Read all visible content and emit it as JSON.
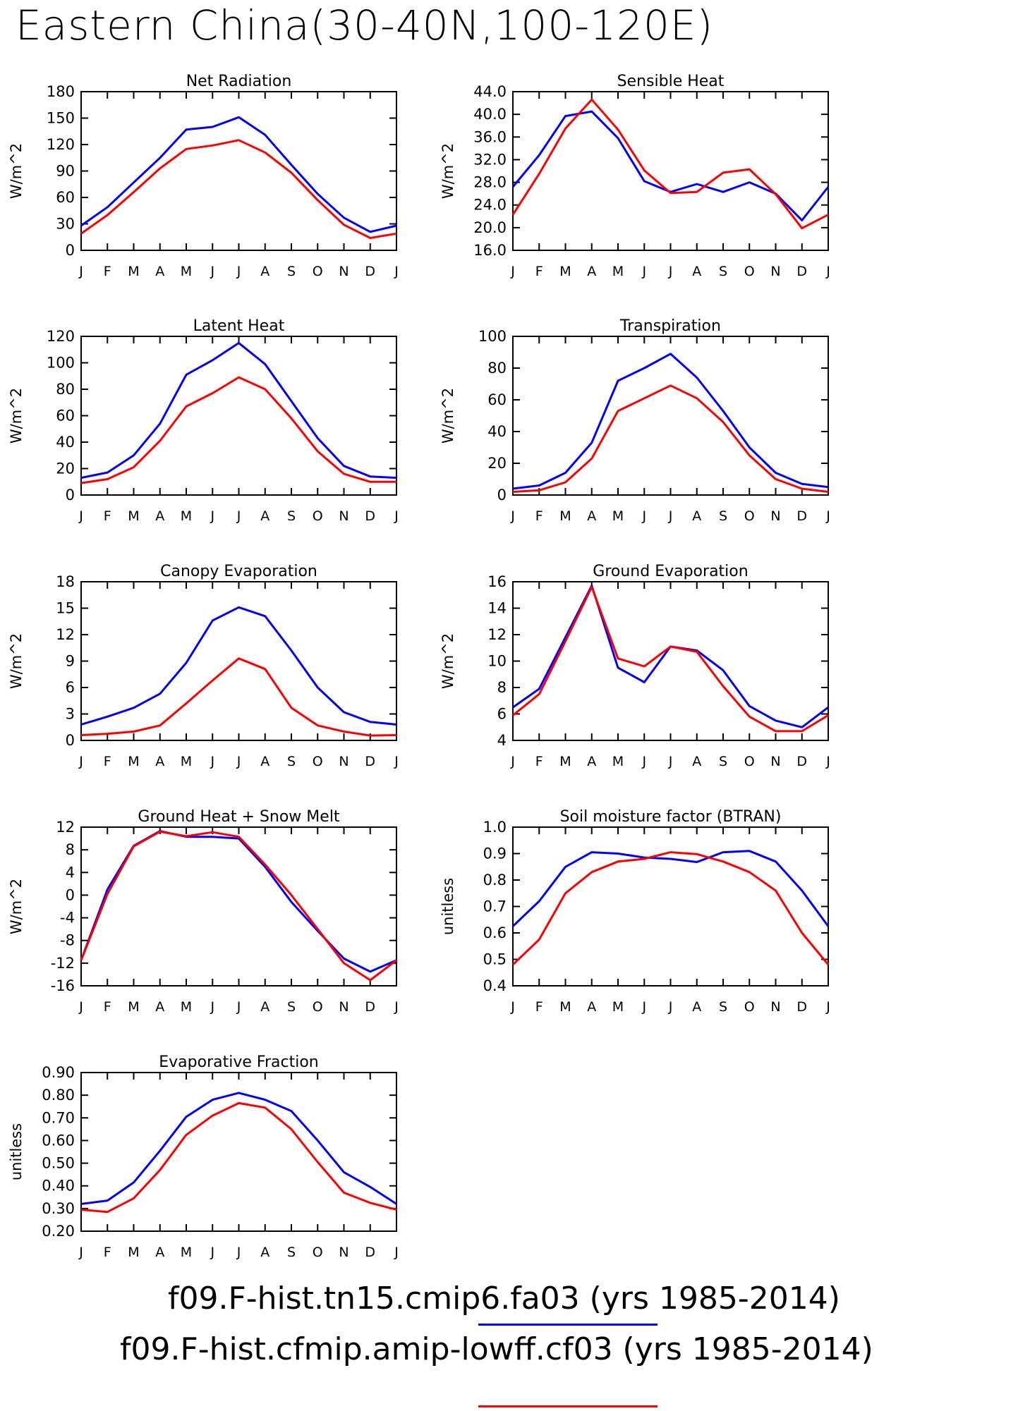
{
  "title": "Eastern China(30-40N,100-120E)",
  "months": [
    "J",
    "F",
    "M",
    "A",
    "M",
    "J",
    "J",
    "A",
    "S",
    "O",
    "N",
    "D",
    "J"
  ],
  "legend": [
    {
      "label": "f09.F-hist.tn15.cmip6.fa03 (yrs 1985-2014)",
      "color": "#0000ff"
    },
    {
      "label": "f09.F-hist.cfmip.amip-lowff.cf03 (yrs 1985-2014)",
      "color": "#ff0000"
    }
  ],
  "chart_data": [
    {
      "type": "line",
      "title": "Net Radiation",
      "ylabel": "W/m^2",
      "ylim": [
        0,
        180
      ],
      "yticks": [
        "0",
        "30",
        "60",
        "90",
        "120",
        "150",
        "180"
      ],
      "categories": [
        "J",
        "F",
        "M",
        "A",
        "M",
        "J",
        "J",
        "A",
        "S",
        "O",
        "N",
        "D",
        "J"
      ],
      "series": [
        {
          "color": "#0000ff",
          "values": [
            28,
            49,
            77,
            105,
            137,
            140,
            151,
            131,
            97,
            64,
            37,
            21,
            28
          ]
        },
        {
          "color": "#ff0000",
          "values": [
            19,
            40,
            66,
            93,
            115,
            119,
            125,
            111,
            88,
            57,
            29,
            14,
            19
          ]
        }
      ]
    },
    {
      "type": "line",
      "title": "Sensible Heat",
      "ylabel": "W/m^2",
      "ylim": [
        16,
        44
      ],
      "yticks": [
        "16.0",
        "20.0",
        "24.0",
        "28.0",
        "32.0",
        "36.0",
        "40.0",
        "44.0"
      ],
      "categories": [
        "J",
        "F",
        "M",
        "A",
        "M",
        "J",
        "J",
        "A",
        "S",
        "O",
        "N",
        "D",
        "J"
      ],
      "series": [
        {
          "color": "#0000ff",
          "values": [
            27.2,
            32.8,
            39.7,
            40.5,
            35.8,
            28.2,
            26.3,
            27.7,
            26.3,
            28.0,
            26.0,
            21.3,
            27.2
          ]
        },
        {
          "color": "#ff0000",
          "values": [
            22.3,
            29.5,
            37.5,
            42.6,
            37.3,
            30.1,
            26.1,
            26.3,
            29.7,
            30.3,
            25.9,
            19.9,
            22.3
          ]
        }
      ]
    },
    {
      "type": "line",
      "title": "Latent Heat",
      "ylabel": "W/m^2",
      "ylim": [
        0,
        120
      ],
      "yticks": [
        "0",
        "20",
        "40",
        "60",
        "80",
        "100",
        "120"
      ],
      "categories": [
        "J",
        "F",
        "M",
        "A",
        "M",
        "J",
        "J",
        "A",
        "S",
        "O",
        "N",
        "D",
        "J"
      ],
      "series": [
        {
          "color": "#0000ff",
          "values": [
            13,
            17,
            30,
            54,
            91,
            102,
            115,
            99,
            71,
            43,
            22,
            14,
            13
          ]
        },
        {
          "color": "#ff0000",
          "values": [
            9,
            12,
            21,
            41,
            67,
            77,
            89,
            80,
            58,
            33,
            16,
            10,
            10
          ]
        }
      ]
    },
    {
      "type": "line",
      "title": "Transpiration",
      "ylabel": "W/m^2",
      "ylim": [
        0,
        100
      ],
      "yticks": [
        "0",
        "20",
        "40",
        "60",
        "80",
        "100"
      ],
      "categories": [
        "J",
        "F",
        "M",
        "A",
        "M",
        "J",
        "J",
        "A",
        "S",
        "O",
        "N",
        "D",
        "J"
      ],
      "series": [
        {
          "color": "#0000ff",
          "values": [
            4,
            6,
            14,
            33,
            72,
            80,
            89,
            74,
            53,
            30,
            14,
            7,
            5
          ]
        },
        {
          "color": "#ff0000",
          "values": [
            2,
            3,
            8,
            23,
            53,
            61,
            69,
            61,
            46,
            25,
            10,
            4,
            2
          ]
        }
      ]
    },
    {
      "type": "line",
      "title": "Canopy Evaporation",
      "ylabel": "W/m^2",
      "ylim": [
        0,
        18
      ],
      "yticks": [
        "0",
        "3",
        "6",
        "9",
        "12",
        "15",
        "18"
      ],
      "categories": [
        "J",
        "F",
        "M",
        "A",
        "M",
        "J",
        "J",
        "A",
        "S",
        "O",
        "N",
        "D",
        "J"
      ],
      "series": [
        {
          "color": "#0000ff",
          "values": [
            1.8,
            2.7,
            3.7,
            5.3,
            8.8,
            13.6,
            15.1,
            14.1,
            10.2,
            6.0,
            3.2,
            2.1,
            1.8
          ]
        },
        {
          "color": "#ff0000",
          "values": [
            0.6,
            0.75,
            1.0,
            1.7,
            4.2,
            6.8,
            9.3,
            8.1,
            3.7,
            1.7,
            1.0,
            0.55,
            0.6
          ]
        }
      ]
    },
    {
      "type": "line",
      "title": "Ground Evaporation",
      "ylabel": "W/m^2",
      "ylim": [
        4,
        16
      ],
      "yticks": [
        "4",
        "6",
        "8",
        "10",
        "12",
        "14",
        "16"
      ],
      "categories": [
        "J",
        "F",
        "M",
        "A",
        "M",
        "J",
        "J",
        "A",
        "S",
        "O",
        "N",
        "D",
        "J"
      ],
      "series": [
        {
          "color": "#0000ff",
          "values": [
            6.5,
            7.9,
            11.8,
            15.7,
            9.5,
            8.4,
            11.1,
            10.8,
            9.3,
            6.6,
            5.5,
            5.0,
            6.5
          ]
        },
        {
          "color": "#ff0000",
          "values": [
            5.9,
            7.5,
            11.5,
            15.6,
            10.2,
            9.6,
            11.1,
            10.7,
            8.1,
            5.8,
            4.7,
            4.7,
            5.9
          ]
        }
      ]
    },
    {
      "type": "line",
      "title": "Ground Heat + Snow Melt",
      "ylabel": "W/m^2",
      "ylim": [
        -16,
        12
      ],
      "yticks": [
        "-16",
        "-12",
        "-8",
        "-4",
        "0",
        "4",
        "8",
        "12"
      ],
      "categories": [
        "J",
        "F",
        "M",
        "A",
        "M",
        "J",
        "J",
        "A",
        "S",
        "O",
        "N",
        "D",
        "J"
      ],
      "series": [
        {
          "color": "#0000ff",
          "values": [
            -11.5,
            1.0,
            8.7,
            11.3,
            10.3,
            10.3,
            10.0,
            5.0,
            -1.2,
            -6.3,
            -11.2,
            -13.5,
            -11.5
          ]
        },
        {
          "color": "#ff0000",
          "values": [
            -11.5,
            0.2,
            8.6,
            11.2,
            10.4,
            11.1,
            10.3,
            5.4,
            0.0,
            -6.0,
            -12.0,
            -15.0,
            -11.5
          ]
        }
      ]
    },
    {
      "type": "line",
      "title": "Soil moisture factor (BTRAN)",
      "ylabel": "unitless",
      "ylim": [
        0.4,
        1.0
      ],
      "yticks": [
        "0.4",
        "0.5",
        "0.6",
        "0.7",
        "0.8",
        "0.9",
        "1.0"
      ],
      "categories": [
        "J",
        "F",
        "M",
        "A",
        "M",
        "J",
        "J",
        "A",
        "S",
        "O",
        "N",
        "D",
        "J"
      ],
      "series": [
        {
          "color": "#0000ff",
          "values": [
            0.625,
            0.72,
            0.85,
            0.905,
            0.9,
            0.885,
            0.88,
            0.868,
            0.905,
            0.91,
            0.87,
            0.76,
            0.625
          ]
        },
        {
          "color": "#ff0000",
          "values": [
            0.48,
            0.575,
            0.75,
            0.83,
            0.87,
            0.88,
            0.905,
            0.898,
            0.87,
            0.83,
            0.76,
            0.6,
            0.48
          ]
        }
      ]
    },
    {
      "type": "line",
      "title": "Evaporative Fraction",
      "ylabel": "unitless",
      "ylim": [
        0.2,
        0.9
      ],
      "yticks": [
        "0.20",
        "0.30",
        "0.40",
        "0.50",
        "0.60",
        "0.70",
        "0.80",
        "0.90"
      ],
      "categories": [
        "J",
        "F",
        "M",
        "A",
        "M",
        "J",
        "J",
        "A",
        "S",
        "O",
        "N",
        "D",
        "J"
      ],
      "series": [
        {
          "color": "#0000ff",
          "values": [
            0.32,
            0.335,
            0.415,
            0.555,
            0.705,
            0.78,
            0.81,
            0.78,
            0.73,
            0.6,
            0.46,
            0.395,
            0.32
          ]
        },
        {
          "color": "#ff0000",
          "values": [
            0.295,
            0.285,
            0.345,
            0.47,
            0.625,
            0.71,
            0.765,
            0.745,
            0.65,
            0.505,
            0.37,
            0.325,
            0.295
          ]
        }
      ]
    }
  ]
}
